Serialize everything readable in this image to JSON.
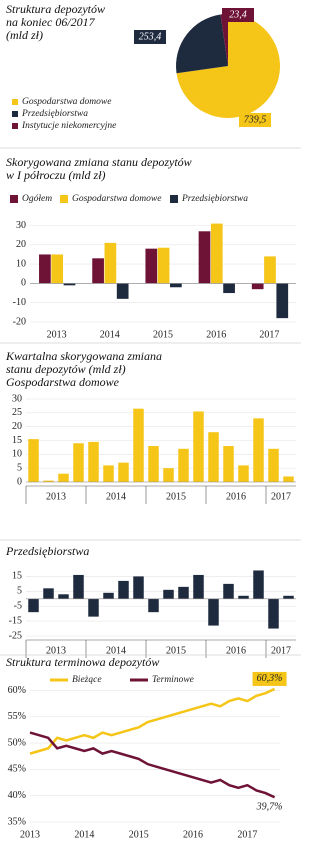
{
  "chart_data": [
    {
      "type": "pie",
      "title": [
        "Struktura depozytów",
        "na koniec 06/2017",
        "(mld zł)"
      ],
      "categories": [
        "Gospodarstwa domowe",
        "Przedsiębiorstwa",
        "Instytucje niekomercyjne"
      ],
      "values": [
        739.5,
        253.4,
        23.4
      ],
      "value_labels": [
        "739,5",
        "253,4",
        "23,4"
      ],
      "colors": [
        "#F5C518",
        "#1E2B3F",
        "#6E1236"
      ]
    },
    {
      "type": "bar",
      "title": [
        "Skorygowana zmiana stanu depozytów",
        "w I półroczu (mld zł)"
      ],
      "categories": [
        "2013",
        "2014",
        "2015",
        "2016",
        "2017"
      ],
      "series": [
        {
          "name": "Ogółem",
          "color": "#6E1236",
          "values": [
            15,
            13,
            18,
            27,
            -3
          ]
        },
        {
          "name": "Gospodarstwa domowe",
          "color": "#F5C518",
          "values": [
            15,
            21,
            18.5,
            31,
            14
          ]
        },
        {
          "name": "Przedsiębiorstwa",
          "color": "#1E2B3F",
          "values": [
            -1,
            -8,
            -2,
            -5,
            -18
          ]
        }
      ],
      "ylim": [
        -20,
        37
      ],
      "yticks": [
        -20,
        -10,
        0,
        10,
        20,
        30
      ]
    },
    {
      "type": "bar",
      "title": [
        "Kwartalna skorygowana zmiana",
        "stanu depozytów (mld zł)"
      ],
      "subtitle": "Gospodarstwa domowe",
      "categories": [
        "2013",
        null,
        null,
        null,
        "2014",
        null,
        null,
        null,
        "2015",
        null,
        null,
        null,
        "2016",
        null,
        null,
        null,
        "2017",
        null
      ],
      "values": [
        15.5,
        0.5,
        3,
        14,
        14.5,
        6,
        7,
        26.5,
        13,
        5,
        12,
        25.5,
        18,
        13,
        6,
        23,
        12,
        2
      ],
      "color": "#F5C518",
      "ylim": [
        0,
        30
      ],
      "yticks": [
        0,
        5,
        10,
        15,
        20,
        25,
        30
      ]
    },
    {
      "type": "bar",
      "title": [
        "Przedsiębiorstwa"
      ],
      "categories": [
        "2013",
        null,
        null,
        null,
        "2014",
        null,
        null,
        null,
        "2015",
        null,
        null,
        null,
        "2016",
        null,
        null,
        null,
        "2017",
        null
      ],
      "values": [
        -9,
        7,
        3,
        16,
        -12,
        4,
        12,
        15,
        -9,
        6,
        8,
        16,
        -18,
        10,
        2,
        19,
        -20,
        2
      ],
      "color": "#1E2B3F",
      "ylim": [
        -25,
        22
      ],
      "yticks": [
        -25,
        -15,
        -5,
        5,
        15
      ]
    },
    {
      "type": "line",
      "title": [
        "Struktura terminowa depozytów"
      ],
      "x": [
        2013,
        2013.1667,
        2013.3333,
        2013.5,
        2013.6667,
        2013.8333,
        2014,
        2014.1667,
        2014.3333,
        2014.5,
        2014.6667,
        2014.8333,
        2015,
        2015.1667,
        2015.3333,
        2015.5,
        2015.6667,
        2015.8333,
        2016,
        2016.1667,
        2016.3333,
        2016.5,
        2016.6667,
        2016.8333,
        2017,
        2017.1667,
        2017.3333,
        2017.5
      ],
      "series": [
        {
          "name": "Bieżące",
          "color": "#F5C518",
          "values": [
            48,
            48.5,
            49,
            51,
            50.5,
            51,
            51.5,
            51,
            52,
            51.5,
            52,
            52.5,
            53,
            54,
            54.5,
            55,
            55.5,
            56,
            56.5,
            57,
            57.5,
            57,
            58,
            58.5,
            58,
            59,
            59.5,
            60.3
          ]
        },
        {
          "name": "Terminowe",
          "color": "#6E1236",
          "values": [
            52,
            51.5,
            51,
            49,
            49.5,
            49,
            48.5,
            49,
            48,
            48.5,
            48,
            47.5,
            47,
            46,
            45.5,
            45,
            44.5,
            44,
            43.5,
            43,
            42.5,
            43,
            42,
            41.5,
            42,
            41,
            40.5,
            39.7
          ]
        }
      ],
      "annotations": [
        "60,3%",
        "39,7%"
      ],
      "xlim": [
        2013,
        2017.6
      ],
      "xticks": [
        2013,
        2014,
        2015,
        2016,
        2017
      ],
      "ylim": [
        35,
        62
      ],
      "yticks": [
        {
          "value": 35,
          "label": "35%"
        },
        {
          "value": 40,
          "label": "40%"
        },
        {
          "value": 45,
          "label": "45%"
        },
        {
          "value": 50,
          "label": "50%"
        },
        {
          "value": 55,
          "label": "55%"
        },
        {
          "value": 60,
          "label": "60%"
        }
      ]
    }
  ]
}
